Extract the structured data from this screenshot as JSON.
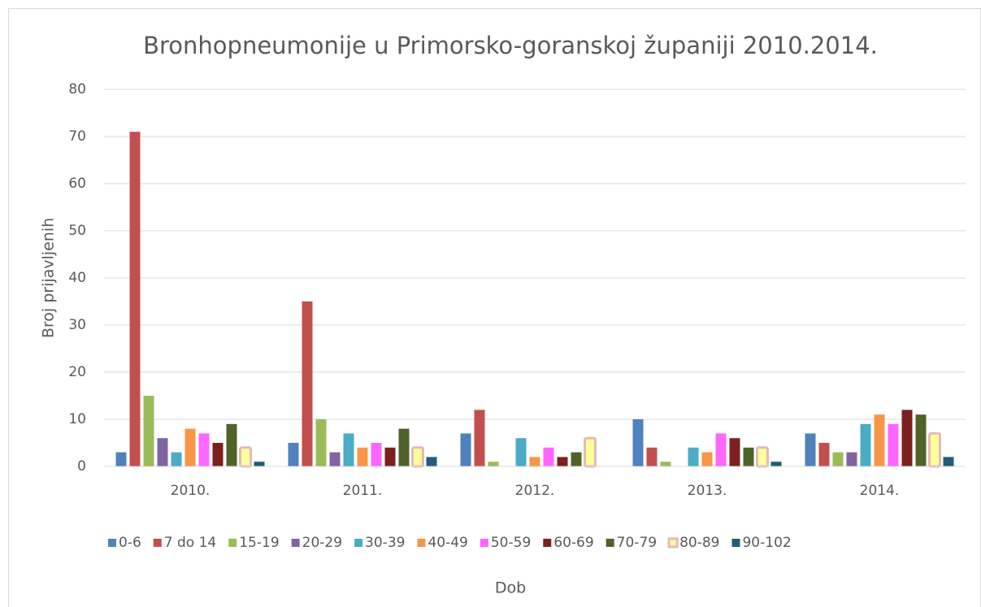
{
  "chart_data": {
    "type": "bar",
    "title": "Bronhopneumonije u Primorsko-goranskoj županiji 2010.2014.",
    "xlabel": "Dob",
    "ylabel": "Broj prijavljenih",
    "categories": [
      "2010.",
      "2011.",
      "2012.",
      "2013.",
      "2014."
    ],
    "series": [
      {
        "name": "0-6",
        "color": "#4f81bd",
        "values": [
          3,
          5,
          7,
          10,
          7
        ]
      },
      {
        "name": "7 do 14",
        "color": "#c0504d",
        "values": [
          71,
          35,
          12,
          4,
          5
        ]
      },
      {
        "name": "15-19",
        "color": "#9bbb59",
        "values": [
          15,
          10,
          1,
          1,
          3
        ]
      },
      {
        "name": "20-29",
        "color": "#8064a2",
        "values": [
          6,
          3,
          0,
          0,
          3
        ]
      },
      {
        "name": "30-39",
        "color": "#4bacc6",
        "values": [
          3,
          7,
          6,
          4,
          9
        ]
      },
      {
        "name": "40-49",
        "color": "#f79646",
        "values": [
          8,
          4,
          2,
          3,
          11
        ]
      },
      {
        "name": "50-59",
        "color": "#ff66ff",
        "values": [
          7,
          5,
          4,
          7,
          9
        ]
      },
      {
        "name": "60-69",
        "color": "#7b2020",
        "values": [
          5,
          4,
          2,
          6,
          12
        ]
      },
      {
        "name": "70-79",
        "color": "#4f6228",
        "values": [
          9,
          8,
          3,
          4,
          11
        ]
      },
      {
        "name": "80-89",
        "color": "#ffff99",
        "border": "#e6b9b8",
        "values": [
          4,
          4,
          6,
          4,
          7
        ]
      },
      {
        "name": "90-102",
        "color": "#215e78",
        "values": [
          1,
          2,
          0,
          1,
          2
        ]
      }
    ],
    "ylim": [
      0,
      80
    ],
    "yticks": [
      0,
      10,
      20,
      30,
      40,
      50,
      60,
      70,
      80
    ],
    "grid": true,
    "legend": "bottom"
  }
}
